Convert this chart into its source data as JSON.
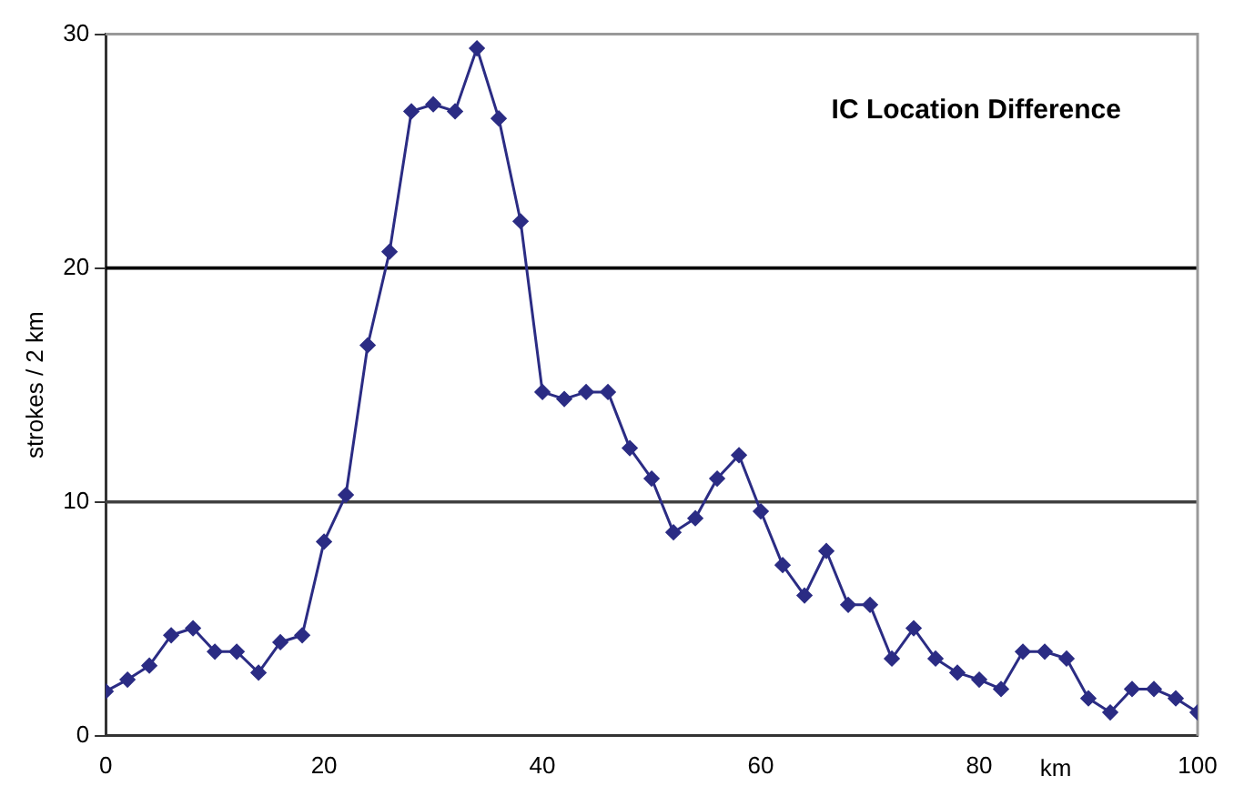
{
  "chart_data": {
    "type": "line",
    "title": "IC Location Difference",
    "xlabel": "km",
    "ylabel": "strokes / 2 km",
    "x": [
      0,
      2,
      4,
      6,
      8,
      10,
      12,
      14,
      16,
      18,
      20,
      22,
      24,
      26,
      28,
      30,
      32,
      34,
      36,
      38,
      40,
      42,
      44,
      46,
      48,
      50,
      52,
      54,
      56,
      58,
      60,
      62,
      64,
      66,
      68,
      70,
      72,
      74,
      76,
      78,
      80,
      82,
      84,
      86,
      88,
      90,
      92,
      94,
      96,
      98,
      100
    ],
    "series": [
      {
        "color": "#2b2c84",
        "values": [
          1.9,
          2.4,
          3.0,
          4.3,
          4.6,
          3.6,
          3.6,
          2.7,
          4.0,
          4.3,
          8.3,
          10.3,
          16.7,
          20.7,
          26.7,
          27.0,
          26.7,
          29.4,
          26.4,
          22.0,
          14.7,
          14.4,
          14.7,
          14.7,
          12.3,
          11.0,
          8.7,
          9.3,
          11.0,
          12.0,
          9.6,
          7.3,
          6.0,
          7.9,
          5.6,
          5.6,
          3.3,
          4.6,
          3.3,
          2.7,
          2.4,
          2.0,
          3.6,
          3.6,
          3.3,
          1.6,
          1.0,
          2.0,
          2.0,
          1.6,
          1.0
        ]
      }
    ],
    "xlim": [
      0,
      100
    ],
    "xticks": [
      0,
      20,
      40,
      60,
      80,
      100
    ],
    "ylim": [
      0,
      30
    ],
    "yticks": [
      0,
      10,
      20,
      30
    ],
    "ref_lines": [
      {
        "axis": "y",
        "value": 10,
        "color": "#404040"
      },
      {
        "axis": "y",
        "value": 20,
        "color": "#000000"
      }
    ],
    "legend": false,
    "marker": "diamond",
    "line_style": "solid"
  }
}
